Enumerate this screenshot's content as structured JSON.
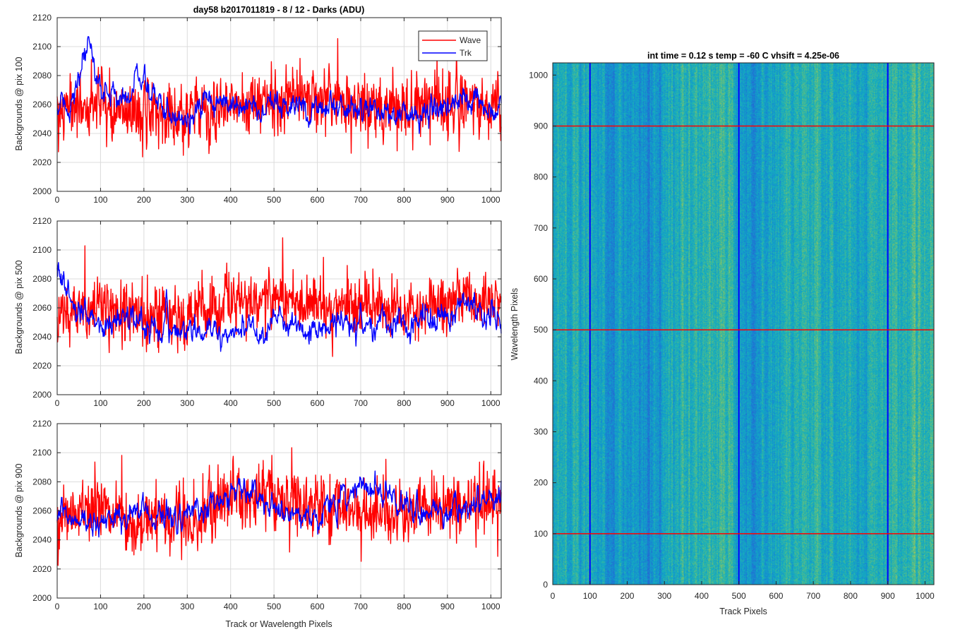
{
  "chart_data": [
    {
      "type": "line",
      "title": "day58 b2017011819 - 8 / 12 - Darks (ADU)",
      "xlabel": "",
      "ylabel": "Backgrounds @ pix 100",
      "xlim": [
        0,
        1024
      ],
      "ylim": [
        2000,
        2120
      ],
      "xticks": [
        0,
        100,
        200,
        300,
        400,
        500,
        600,
        700,
        800,
        900,
        1000
      ],
      "yticks": [
        2000,
        2020,
        2040,
        2060,
        2080,
        2100,
        2120
      ],
      "grid": true,
      "legend": {
        "position": "top-right",
        "entries": [
          "Wave",
          "Trk"
        ]
      },
      "series": [
        {
          "name": "Wave",
          "color": "#ff0000",
          "baseline": 2055,
          "spread": 11,
          "envelope": [
            [
              0,
              2055
            ],
            [
              100,
              2056
            ],
            [
              200,
              2052
            ],
            [
              300,
              2050
            ],
            [
              400,
              2060
            ],
            [
              500,
              2063
            ],
            [
              600,
              2062
            ],
            [
              700,
              2060
            ],
            [
              800,
              2056
            ],
            [
              900,
              2060
            ],
            [
              1024,
              2058
            ]
          ]
        },
        {
          "name": "Trk",
          "color": "#0000ff",
          "baseline": 2058,
          "spread": 5,
          "envelope": [
            [
              0,
              2055
            ],
            [
              40,
              2065
            ],
            [
              75,
              2100
            ],
            [
              100,
              2070
            ],
            [
              150,
              2065
            ],
            [
              200,
              2080
            ],
            [
              230,
              2060
            ],
            [
              300,
              2052
            ],
            [
              350,
              2058
            ],
            [
              400,
              2062
            ],
            [
              500,
              2055
            ],
            [
              600,
              2060
            ],
            [
              700,
              2058
            ],
            [
              800,
              2052
            ],
            [
              900,
              2060
            ],
            [
              1024,
              2058
            ]
          ]
        }
      ]
    },
    {
      "type": "line",
      "title": "",
      "xlabel": "",
      "ylabel": "Backgrounds @ pix 500",
      "xlim": [
        0,
        1024
      ],
      "ylim": [
        2000,
        2120
      ],
      "xticks": [
        0,
        100,
        200,
        300,
        400,
        500,
        600,
        700,
        800,
        900,
        1000
      ],
      "yticks": [
        2000,
        2020,
        2040,
        2060,
        2080,
        2100,
        2120
      ],
      "grid": true,
      "series": [
        {
          "name": "Wave",
          "color": "#ff0000",
          "baseline": 2055,
          "spread": 10,
          "envelope": [
            [
              0,
              2052
            ],
            [
              100,
              2060
            ],
            [
              200,
              2055
            ],
            [
              300,
              2050
            ],
            [
              400,
              2065
            ],
            [
              500,
              2068
            ],
            [
              600,
              2060
            ],
            [
              700,
              2063
            ],
            [
              800,
              2055
            ],
            [
              900,
              2065
            ],
            [
              1024,
              2063
            ]
          ]
        },
        {
          "name": "Trk",
          "color": "#0000ff",
          "baseline": 2048,
          "spread": 5,
          "envelope": [
            [
              0,
              2090
            ],
            [
              30,
              2065
            ],
            [
              60,
              2050
            ],
            [
              100,
              2048
            ],
            [
              170,
              2055
            ],
            [
              200,
              2046
            ],
            [
              300,
              2045
            ],
            [
              380,
              2040
            ],
            [
              400,
              2046
            ],
            [
              500,
              2048
            ],
            [
              600,
              2045
            ],
            [
              650,
              2050
            ],
            [
              800,
              2046
            ],
            [
              880,
              2055
            ],
            [
              960,
              2065
            ],
            [
              1024,
              2045
            ]
          ]
        }
      ]
    },
    {
      "type": "line",
      "title": "",
      "xlabel": "Track or Wavelength Pixels",
      "ylabel": "Backgrounds @ pix 900",
      "xlim": [
        0,
        1024
      ],
      "ylim": [
        2000,
        2120
      ],
      "xticks": [
        0,
        100,
        200,
        300,
        400,
        500,
        600,
        700,
        800,
        900,
        1000
      ],
      "yticks": [
        2000,
        2020,
        2040,
        2060,
        2080,
        2100,
        2120
      ],
      "grid": true,
      "series": [
        {
          "name": "Wave",
          "color": "#ff0000",
          "baseline": 2058,
          "spread": 11,
          "envelope": [
            [
              0,
              2060
            ],
            [
              100,
              2058
            ],
            [
              200,
              2048
            ],
            [
              300,
              2052
            ],
            [
              400,
              2070
            ],
            [
              500,
              2070
            ],
            [
              600,
              2063
            ],
            [
              700,
              2058
            ],
            [
              800,
              2056
            ],
            [
              900,
              2064
            ],
            [
              1024,
              2065
            ]
          ]
        },
        {
          "name": "Trk",
          "color": "#0000ff",
          "baseline": 2060,
          "spread": 5,
          "envelope": [
            [
              0,
              2055
            ],
            [
              100,
              2052
            ],
            [
              200,
              2060
            ],
            [
              300,
              2055
            ],
            [
              400,
              2075
            ],
            [
              500,
              2062
            ],
            [
              600,
              2055
            ],
            [
              700,
              2080
            ],
            [
              800,
              2065
            ],
            [
              900,
              2058
            ],
            [
              1024,
              2068
            ]
          ]
        }
      ]
    },
    {
      "type": "heatmap",
      "title": "int time = 0.12 s   temp = -60 C   vhsift = 4.25e-06",
      "xlabel": "Track Pixels",
      "ylabel": "Wavelength Pixels",
      "xlim": [
        0,
        1024
      ],
      "ylim": [
        0,
        1024
      ],
      "xticks": [
        0,
        100,
        200,
        300,
        400,
        500,
        600,
        700,
        800,
        900,
        1000
      ],
      "yticks": [
        0,
        100,
        200,
        300,
        400,
        500,
        600,
        700,
        800,
        900,
        1000
      ],
      "colormap": "parula",
      "vertical_markers": {
        "x": [
          100,
          500,
          900
        ],
        "color": "#0000ff"
      },
      "horizontal_markers": {
        "y": [
          100,
          500,
          900
        ],
        "color": "#ff0000"
      }
    }
  ]
}
